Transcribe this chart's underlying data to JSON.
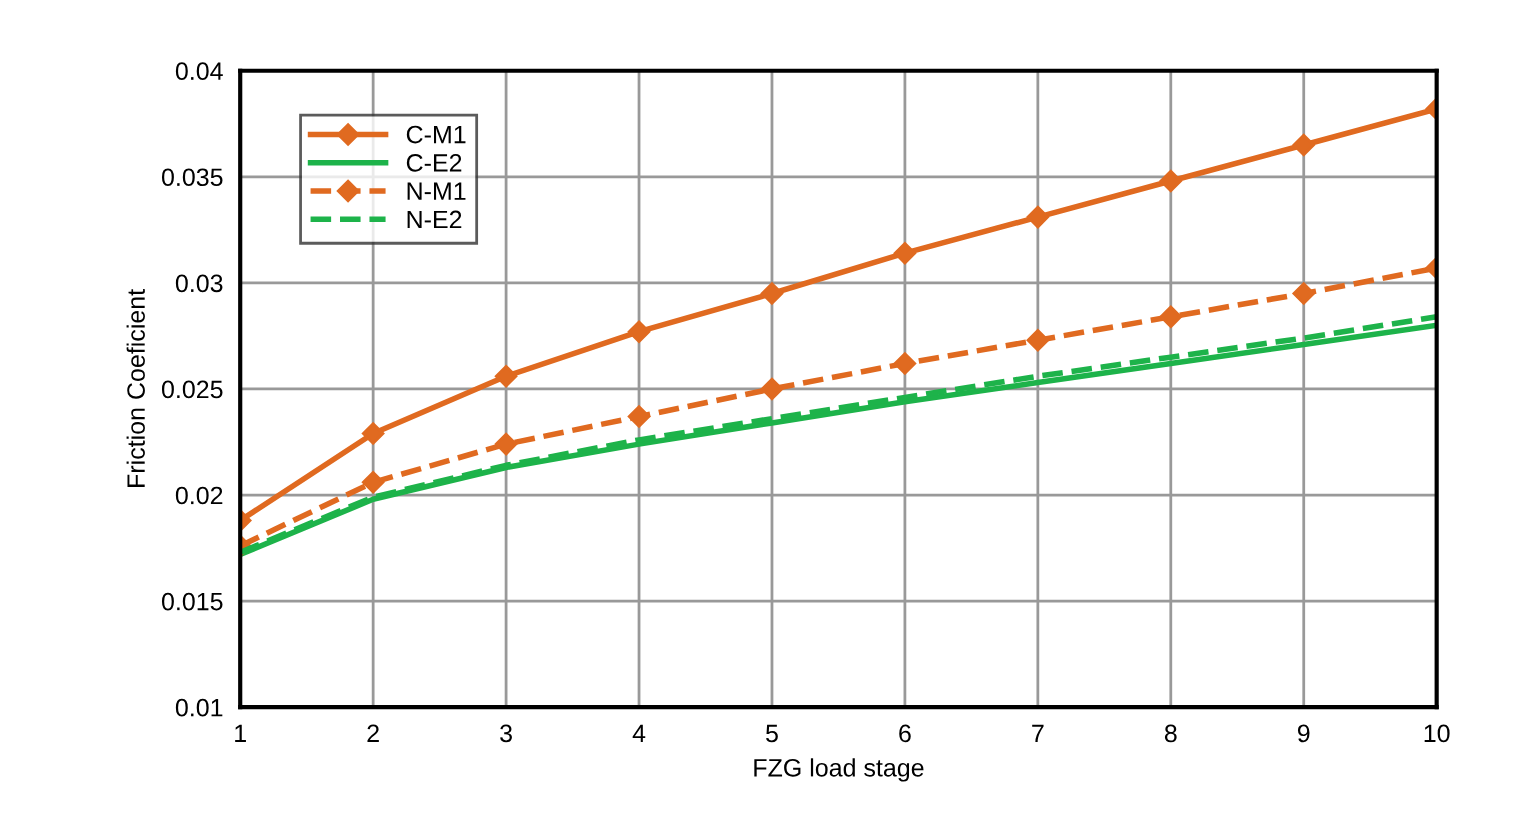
{
  "chart_data": {
    "type": "line",
    "xlabel": "FZG load stage",
    "ylabel": "Friction Coeficient",
    "x": [
      1,
      2,
      3,
      4,
      5,
      6,
      7,
      8,
      9,
      10
    ],
    "series": [
      {
        "name": "C-M1",
        "color": "#e06a20",
        "marker": "diamond",
        "line_style": "solid",
        "values": [
          0.0188,
          0.0229,
          0.0256,
          0.0277,
          0.0295,
          0.0314,
          0.0331,
          0.0348,
          0.0365,
          0.0382
        ]
      },
      {
        "name": "C-E2",
        "color": "#1db34a",
        "marker": "none",
        "line_style": "solid",
        "values": [
          0.0172,
          0.0198,
          0.0213,
          0.0224,
          0.0234,
          0.0244,
          0.0253,
          0.0262,
          0.0271,
          0.028
        ]
      },
      {
        "name": "N-M1",
        "color": "#e06a20",
        "marker": "diamond",
        "line_style": "dashed",
        "values": [
          0.0176,
          0.0206,
          0.0224,
          0.0237,
          0.025,
          0.0262,
          0.0273,
          0.0284,
          0.0295,
          0.0307
        ]
      },
      {
        "name": "N-E2",
        "color": "#1db34a",
        "marker": "none",
        "line_style": "dashed",
        "values": [
          0.0173,
          0.0199,
          0.0214,
          0.0226,
          0.0236,
          0.0246,
          0.0256,
          0.0265,
          0.0274,
          0.0284
        ]
      }
    ],
    "xlim": [
      1,
      10
    ],
    "xticks": [
      1,
      2,
      3,
      4,
      5,
      6,
      7,
      8,
      9,
      10
    ],
    "ylim": [
      0.01,
      0.04
    ],
    "yticks": [
      0.01,
      0.015,
      0.02,
      0.025,
      0.03,
      0.035,
      0.04
    ],
    "grid": true,
    "legend": "top left"
  }
}
